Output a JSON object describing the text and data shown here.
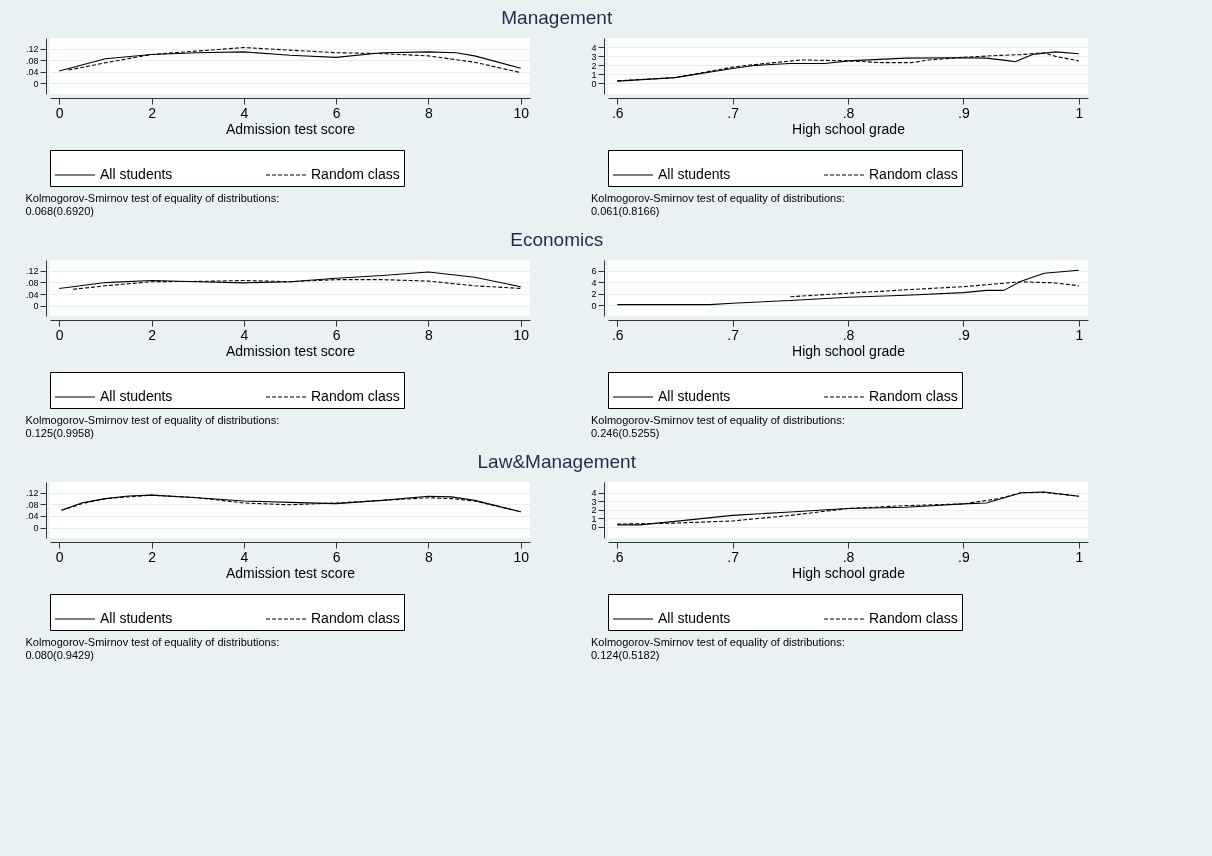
{
  "chart_data": [
    {
      "type": "line",
      "title": "Management",
      "xlabel": "Admission test score",
      "xlim": [
        -0.2,
        10.2
      ],
      "xticks": [
        0,
        2,
        4,
        6,
        8,
        10
      ],
      "ylim": [
        -0.037,
        0.157
      ],
      "yticks": [
        0,
        {
          "value": 0.04,
          "label": ".04"
        },
        {
          "value": 0.08,
          "label": ".08"
        },
        {
          "value": 0.12,
          "label": ".12"
        }
      ],
      "grid": "y",
      "legend": "bottom",
      "annotations": [
        "Kolmogorov-Smirnov test of equality of distributions:",
        "0.068(0.6920)"
      ],
      "series": [
        {
          "name": "All students",
          "color": "#000000",
          "line_style": "solid",
          "x": [
            0,
            1,
            2,
            3,
            4,
            5,
            6,
            7,
            8,
            8.6,
            9,
            10
          ],
          "values": [
            0.043,
            0.085,
            0.1,
            0.106,
            0.109,
            0.097,
            0.09,
            0.106,
            0.109,
            0.106,
            0.095,
            0.052
          ]
        },
        {
          "name": "Random class",
          "color": "#000000",
          "line_style": "dashed",
          "x": [
            0.2,
            1,
            2,
            3,
            4,
            5,
            6,
            7,
            8,
            9,
            10
          ],
          "values": [
            0.046,
            0.071,
            0.1,
            0.112,
            0.124,
            0.115,
            0.106,
            0.103,
            0.095,
            0.073,
            0.037
          ]
        }
      ]
    },
    {
      "type": "line",
      "xlabel": "High school grade",
      "xlim": [
        0.592,
        1.008
      ],
      "xticks": [
        {
          "value": 0.6,
          "label": ".6"
        },
        {
          "value": 0.7,
          "label": ".7"
        },
        {
          "value": 0.8,
          "label": ".8"
        },
        {
          "value": 0.9,
          "label": ".9"
        },
        1
      ],
      "ylim": [
        -1.2,
        5.05
      ],
      "yticks": [
        0,
        1,
        2,
        3,
        4
      ],
      "grid": "y",
      "legend": "bottom",
      "annotations": [
        "Kolmogorov-Smirnov test of equality of distributions:",
        "0.061(0.8166)"
      ],
      "series": [
        {
          "name": "All students",
          "color": "#000000",
          "line_style": "solid",
          "x": [
            0.6,
            0.65,
            0.7,
            0.72,
            0.75,
            0.78,
            0.8,
            0.85,
            0.9,
            0.92,
            0.94,
            0.945,
            0.96,
            0.98,
            1.0
          ],
          "values": [
            0.24,
            0.63,
            1.65,
            2.0,
            2.2,
            2.2,
            2.5,
            2.8,
            2.85,
            2.8,
            2.5,
            2.4,
            3.2,
            3.5,
            3.3
          ]
        },
        {
          "name": "Random class",
          "color": "#000000",
          "line_style": "dashed",
          "x": [
            0.6,
            0.65,
            0.7,
            0.72,
            0.76,
            0.8,
            0.83,
            0.855,
            0.87,
            0.9,
            0.93,
            0.95,
            0.97,
            0.98,
            1.0
          ],
          "values": [
            0.27,
            0.63,
            1.8,
            2.1,
            2.6,
            2.5,
            2.3,
            2.3,
            2.6,
            2.9,
            3.1,
            3.2,
            3.4,
            3.0,
            2.5
          ]
        }
      ]
    },
    {
      "type": "line",
      "title": "Economics",
      "xlabel": "Admission test score",
      "xlim": [
        -0.2,
        10.2
      ],
      "xticks": [
        0,
        2,
        4,
        6,
        8,
        10
      ],
      "ylim": [
        -0.035,
        0.156
      ],
      "yticks": [
        0,
        {
          "value": 0.04,
          "label": ".04"
        },
        {
          "value": 0.08,
          "label": ".08"
        },
        {
          "value": 0.12,
          "label": ".12"
        }
      ],
      "grid": "y",
      "legend": "bottom",
      "annotations": [
        "Kolmogorov-Smirnov test of equality of distributions:",
        "0.125(0.9958)"
      ],
      "series": [
        {
          "name": "All students",
          "color": "#000000",
          "line_style": "solid",
          "x": [
            0,
            1,
            2,
            3,
            4,
            5,
            6,
            7,
            8,
            9,
            10
          ],
          "values": [
            0.059,
            0.079,
            0.086,
            0.082,
            0.078,
            0.082,
            0.094,
            0.103,
            0.115,
            0.097,
            0.065
          ]
        },
        {
          "name": "Random class",
          "color": "#000000",
          "line_style": "dashed",
          "x": [
            0.3,
            1,
            2,
            3,
            4,
            5,
            6,
            7,
            8,
            9,
            10
          ],
          "values": [
            0.056,
            0.068,
            0.082,
            0.083,
            0.086,
            0.082,
            0.089,
            0.089,
            0.084,
            0.068,
            0.059
          ]
        }
      ]
    },
    {
      "type": "line",
      "xlabel": "High school grade",
      "xlim": [
        0.592,
        1.008
      ],
      "xticks": [
        {
          "value": 0.6,
          "label": ".6"
        },
        {
          "value": 0.7,
          "label": ".7"
        },
        {
          "value": 0.8,
          "label": ".8"
        },
        {
          "value": 0.9,
          "label": ".9"
        },
        1
      ],
      "ylim": [
        -1.87,
        7.9
      ],
      "yticks": [
        0,
        2,
        4,
        6
      ],
      "grid": "y",
      "legend": "bottom",
      "annotations": [
        "Kolmogorov-Smirnov test of equality of distributions:",
        "0.246(0.5255)"
      ],
      "series": [
        {
          "name": "All students",
          "color": "#000000",
          "line_style": "solid",
          "x": [
            0.6,
            0.68,
            0.7,
            0.75,
            0.8,
            0.85,
            0.9,
            0.92,
            0.935,
            0.95,
            0.97,
            1.0
          ],
          "values": [
            0.12,
            0.12,
            0.36,
            0.84,
            1.4,
            1.75,
            2.2,
            2.6,
            2.6,
            4.2,
            5.6,
            6.1
          ]
        },
        {
          "name": "Random class",
          "color": "#000000",
          "line_style": "dashed",
          "x": [
            0.75,
            0.8,
            0.85,
            0.9,
            0.95,
            0.98,
            1.0
          ],
          "values": [
            1.5,
            2.1,
            2.7,
            3.25,
            4.1,
            3.9,
            3.4
          ]
        }
      ]
    },
    {
      "type": "line",
      "title": "Law&Management",
      "xlabel": "Admission test score",
      "xlim": [
        -0.2,
        10.2
      ],
      "xticks": [
        0,
        2,
        4,
        6,
        8,
        10
      ],
      "ylim": [
        -0.036,
        0.156
      ],
      "yticks": [
        0,
        {
          "value": 0.04,
          "label": ".04"
        },
        {
          "value": 0.08,
          "label": ".08"
        },
        {
          "value": 0.12,
          "label": ".12"
        }
      ],
      "grid": "y",
      "legend": "bottom",
      "annotations": [
        "Kolmogorov-Smirnov test of equality of distributions:",
        "0.080(0.9429)"
      ],
      "series": [
        {
          "name": "All students",
          "color": "#000000",
          "line_style": "solid",
          "x": [
            0.05,
            0.5,
            1,
            1.5,
            2,
            3,
            4,
            5,
            6,
            7,
            8,
            8.5,
            9,
            10
          ],
          "values": [
            0.059,
            0.085,
            0.099,
            0.108,
            0.111,
            0.102,
            0.091,
            0.086,
            0.082,
            0.093,
            0.107,
            0.105,
            0.093,
            0.054
          ]
        },
        {
          "name": "Random class",
          "color": "#000000",
          "line_style": "dashed",
          "x": [
            0.05,
            0.5,
            1,
            2,
            3,
            4,
            5,
            6,
            7,
            8,
            8.5,
            9,
            10
          ],
          "values": [
            0.059,
            0.082,
            0.099,
            0.111,
            0.102,
            0.084,
            0.078,
            0.084,
            0.093,
            0.102,
            0.099,
            0.091,
            0.054
          ]
        }
      ]
    },
    {
      "type": "line",
      "xlabel": "High school grade",
      "xlim": [
        0.592,
        1.008
      ],
      "xticks": [
        {
          "value": 0.6,
          "label": ".6"
        },
        {
          "value": 0.7,
          "label": ".7"
        },
        {
          "value": 0.8,
          "label": ".8"
        },
        {
          "value": 0.9,
          "label": ".9"
        },
        1
      ],
      "ylim": [
        -1.3,
        5.27
      ],
      "yticks": [
        0,
        1,
        2,
        3,
        4
      ],
      "grid": "y",
      "legend": "bottom",
      "annotations": [
        "Kolmogorov-Smirnov test of equality of distributions:",
        "0.124(0.5182)"
      ],
      "series": [
        {
          "name": "All students",
          "color": "#000000",
          "line_style": "solid",
          "x": [
            0.6,
            0.62,
            0.65,
            0.7,
            0.75,
            0.8,
            0.85,
            0.9,
            0.92,
            0.95,
            0.97,
            1.0
          ],
          "values": [
            0.24,
            0.24,
            0.65,
            1.35,
            1.75,
            2.16,
            2.3,
            2.7,
            2.8,
            4.0,
            4.1,
            3.6
          ]
        },
        {
          "name": "Random class",
          "color": "#000000",
          "line_style": "dashed",
          "x": [
            0.6,
            0.65,
            0.7,
            0.75,
            0.8,
            0.85,
            0.9,
            0.93,
            0.95,
            0.97,
            1.0
          ],
          "values": [
            0.33,
            0.45,
            0.7,
            1.35,
            2.16,
            2.5,
            2.7,
            3.3,
            4.0,
            4.05,
            3.6
          ]
        }
      ]
    }
  ]
}
